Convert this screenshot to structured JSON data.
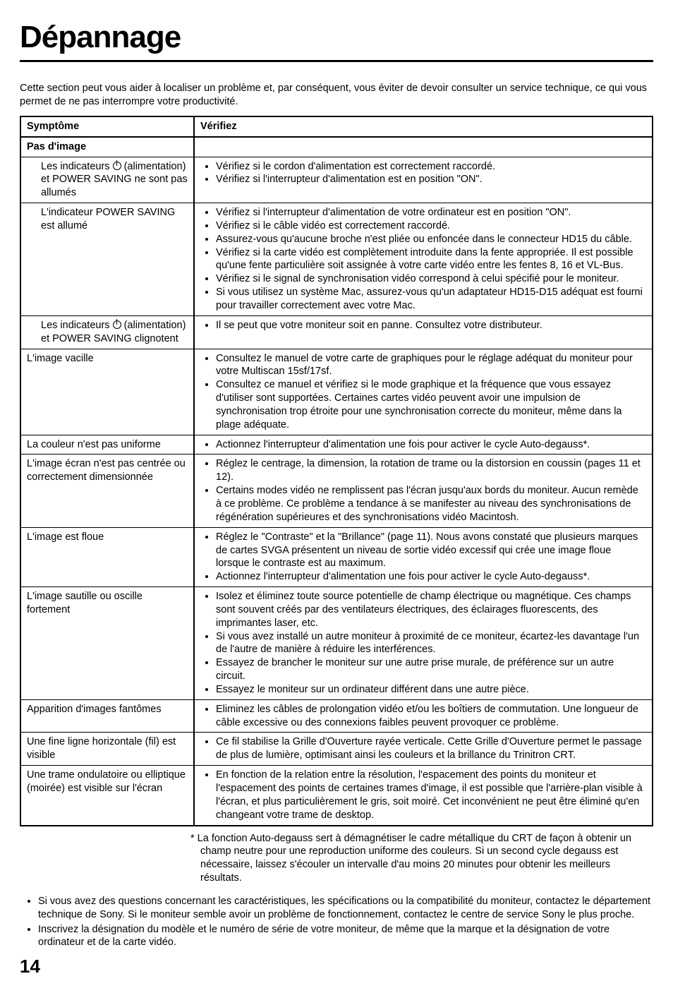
{
  "title": "Dépannage",
  "intro": "Cette section peut vous aider à localiser un problème et, par conséquent, vous éviter de devoir consulter un service technique, ce qui vous permet de ne pas interrompre votre productivité.",
  "headers": {
    "symptom": "Symptôme",
    "check": "Vérifiez"
  },
  "rows": [
    {
      "type": "section",
      "sym": "Pas d'image",
      "chk": []
    },
    {
      "type": "indent",
      "sym_pre": "Les indicateurs ",
      "sym_post": " (alimentation) et POWER SAVING ne sont pas allumés",
      "icon": true,
      "chk": [
        "Vérifiez si le cordon d'alimentation est correctement raccordé.",
        "Vérifiez si l'interrupteur d'alimentation est en position \"ON\"."
      ]
    },
    {
      "type": "indent",
      "sym": "L'indicateur POWER SAVING est allumé",
      "chk": [
        "Vérifiez si l'interrupteur d'alimentation de votre ordinateur est en position \"ON\".",
        "Vérifiez si le câble vidéo est correctement raccordé.",
        "Assurez-vous qu'aucune broche n'est pliée ou enfoncée dans le connecteur HD15 du câble.",
        "Vérifiez si la carte vidéo est complètement introduite dans la fente appropriée. Il est possible qu'une fente particulière soit assignée à votre carte vidéo entre les fentes 8, 16 et VL-Bus.",
        "Vérifiez si le signal de synchronisation vidéo correspond à celui spécifié pour le moniteur.",
        "Si vous utilisez un système Mac, assurez-vous qu'un adaptateur HD15-D15 adéquat est fourni pour travailler correctement avec votre Mac."
      ]
    },
    {
      "type": "indent",
      "sym_pre": "Les indicateurs ",
      "sym_post": " (alimentation) et POWER SAVING clignotent",
      "icon": true,
      "chk": [
        "Il se peut que votre moniteur soit en panne. Consultez votre distributeur."
      ]
    },
    {
      "type": "normal",
      "sym": "L'image vacille",
      "chk": [
        "Consultez le manuel de votre carte de graphiques pour le réglage adéquat du moniteur pour votre Multiscan 15sf/17sf.",
        "Consultez ce manuel et vérifiez si le mode graphique et la fréquence que vous essayez d'utiliser sont supportées. Certaines cartes vidéo peuvent avoir une impulsion de synchronisation trop étroite pour une synchronisation correcte du moniteur, même dans la plage adéquate."
      ]
    },
    {
      "type": "normal",
      "sym": "La couleur n'est pas uniforme",
      "chk": [
        "Actionnez l'interrupteur d'alimentation une fois pour activer le cycle Auto-degauss*."
      ]
    },
    {
      "type": "normal",
      "sym": "L'image écran n'est pas centrée ou correctement dimensionnée",
      "chk": [
        "Réglez le centrage, la dimension, la rotation de trame ou la distorsion en coussin (pages 11 et 12).",
        "Certains modes vidéo ne remplissent pas l'écran jusqu'aux bords du moniteur. Aucun remède à ce problème. Ce problème a tendance à se manifester au niveau des synchronisations de régénération supérieures et des synchronisations vidéo Macintosh."
      ]
    },
    {
      "type": "normal",
      "sym": "L'image est floue",
      "chk": [
        "Réglez le \"Contraste\" et la \"Brillance\" (page 11). Nous avons constaté que plusieurs marques de cartes SVGA présentent un niveau de sortie vidéo excessif qui crée une image floue lorsque le contraste est au maximum.",
        "Actionnez l'interrupteur d'alimentation une fois pour activer le cycle Auto-degauss*."
      ]
    },
    {
      "type": "normal",
      "sym": "L'image sautille ou oscille fortement",
      "chk": [
        "Isolez et éliminez toute source potentielle de champ électrique ou magnétique. Ces champs sont souvent créés par des ventilateurs électriques, des éclairages fluorescents, des imprimantes laser, etc.",
        "Si vous avez installé un autre moniteur à proximité de ce moniteur, écartez-les davantage l'un de l'autre de manière à réduire les interférences.",
        "Essayez de brancher le moniteur sur une autre prise murale, de préférence sur un autre circuit.",
        "Essayez le moniteur sur un ordinateur différent dans une autre pièce."
      ]
    },
    {
      "type": "normal",
      "sym": "Apparition d'images fantômes",
      "chk": [
        "Eliminez les câbles de prolongation vidéo et/ou les boîtiers de commutation. Une longueur de câble excessive ou des connexions faibles peuvent provoquer ce problème."
      ]
    },
    {
      "type": "normal",
      "sym": "Une fine ligne horizontale (fil) est visible",
      "chk": [
        "Ce fil stabilise la Grille d'Ouverture rayée verticale. Cette Grille d'Ouverture permet le passage de plus de lumière, optimisant ainsi les couleurs et la brillance du Trinitron CRT."
      ]
    },
    {
      "type": "normal",
      "last": true,
      "sym": "Une trame ondulatoire ou elliptique (moirée) est visible sur l'écran",
      "chk": [
        "En fonction de la relation entre la résolution, l'espacement des points du moniteur et l'espacement des points de certaines trames d'image, il est possible que l'arrière-plan visible à l'écran, et plus particulièrement le gris, soit moiré. Cet inconvénient ne peut être éliminé qu'en changeant votre trame de desktop."
      ]
    }
  ],
  "asterisk": "La fonction Auto-degauss sert à démagnétiser le cadre métallique du CRT de façon à obtenir un champ neutre pour une reproduction uniforme des couleurs. Si un second cycle degauss est nécessaire, laissez s'écouler un intervalle d'au moins 20 minutes pour obtenir les meilleurs résultats.",
  "bottom": [
    "Si vous avez des questions concernant les caractéristiques, les spécifications ou la compatibilité du moniteur, contactez le département technique de Sony. Si le moniteur semble avoir un problème de fonctionnement, contactez le centre de service Sony le plus proche.",
    "Inscrivez la désignation du modèle et le numéro de série de votre moniteur, de même que la marque et la désignation de votre ordinateur et de la carte vidéo."
  ],
  "page": "14"
}
